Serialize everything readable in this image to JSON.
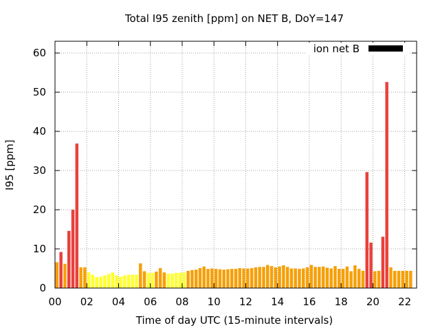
{
  "chart_data": {
    "type": "bar",
    "title": "Total I95 zenith [ppm] on NET B, DoY=147",
    "xlabel": "Time of day UTC (15-minute intervals)",
    "ylabel": "I95 [ppm]",
    "xlim": [
      0,
      22.75
    ],
    "ylim": [
      0,
      63
    ],
    "x_ticks": [
      "00",
      "02",
      "04",
      "06",
      "08",
      "10",
      "12",
      "14",
      "16",
      "18",
      "20",
      "22"
    ],
    "y_ticks": [
      "0",
      "10",
      "20",
      "30",
      "40",
      "50",
      "60"
    ],
    "grid": true,
    "legend": {
      "position": "top-right",
      "entries": [
        {
          "label": "ion net B",
          "color": "#000000"
        }
      ]
    },
    "colors": {
      "red": "#e8413d",
      "orange": "#f5a00a",
      "yellow": "#ffff2e"
    },
    "bin_hours": 0.25,
    "x_start": 0,
    "values": [
      6.6,
      9.2,
      6.2,
      14.6,
      20.0,
      36.9,
      5.3,
      5.3,
      4.0,
      3.4,
      2.8,
      2.9,
      3.2,
      3.6,
      4.0,
      3.2,
      2.9,
      3.2,
      3.4,
      3.4,
      3.4,
      6.3,
      4.3,
      3.9,
      3.9,
      4.2,
      5.1,
      4.0,
      3.7,
      3.7,
      3.9,
      3.9,
      4.0,
      4.4,
      4.6,
      4.7,
      5.1,
      5.5,
      4.9,
      5.0,
      4.9,
      4.8,
      4.7,
      4.8,
      4.9,
      4.9,
      5.1,
      5.0,
      5.0,
      5.1,
      5.3,
      5.4,
      5.4,
      5.9,
      5.6,
      5.3,
      5.5,
      5.8,
      5.4,
      5.0,
      5.0,
      4.9,
      5.0,
      5.3,
      5.9,
      5.4,
      5.4,
      5.5,
      5.2,
      5.0,
      5.6,
      4.9,
      4.9,
      5.5,
      4.3,
      5.8,
      4.9,
      4.4,
      29.6,
      11.6,
      4.3,
      4.4,
      13.1,
      52.6,
      5.3,
      4.4,
      4.4,
      4.4,
      4.4,
      4.4
    ],
    "bar_colors": [
      "orange",
      "red",
      "orange",
      "red",
      "red",
      "red",
      "orange",
      "orange",
      "yellow",
      "yellow",
      "yellow",
      "yellow",
      "yellow",
      "yellow",
      "yellow",
      "yellow",
      "yellow",
      "yellow",
      "yellow",
      "yellow",
      "yellow",
      "orange",
      "orange",
      "yellow",
      "yellow",
      "orange",
      "orange",
      "orange",
      "yellow",
      "yellow",
      "yellow",
      "yellow",
      "yellow",
      "orange",
      "orange",
      "orange",
      "orange",
      "orange",
      "orange",
      "orange",
      "orange",
      "orange",
      "orange",
      "orange",
      "orange",
      "orange",
      "orange",
      "orange",
      "orange",
      "orange",
      "orange",
      "orange",
      "orange",
      "orange",
      "orange",
      "orange",
      "orange",
      "orange",
      "orange",
      "orange",
      "orange",
      "orange",
      "orange",
      "orange",
      "orange",
      "orange",
      "orange",
      "orange",
      "orange",
      "orange",
      "orange",
      "orange",
      "orange",
      "orange",
      "orange",
      "orange",
      "orange",
      "orange",
      "red",
      "red",
      "orange",
      "orange",
      "red",
      "red",
      "orange",
      "orange",
      "orange",
      "orange",
      "orange",
      "orange"
    ]
  }
}
